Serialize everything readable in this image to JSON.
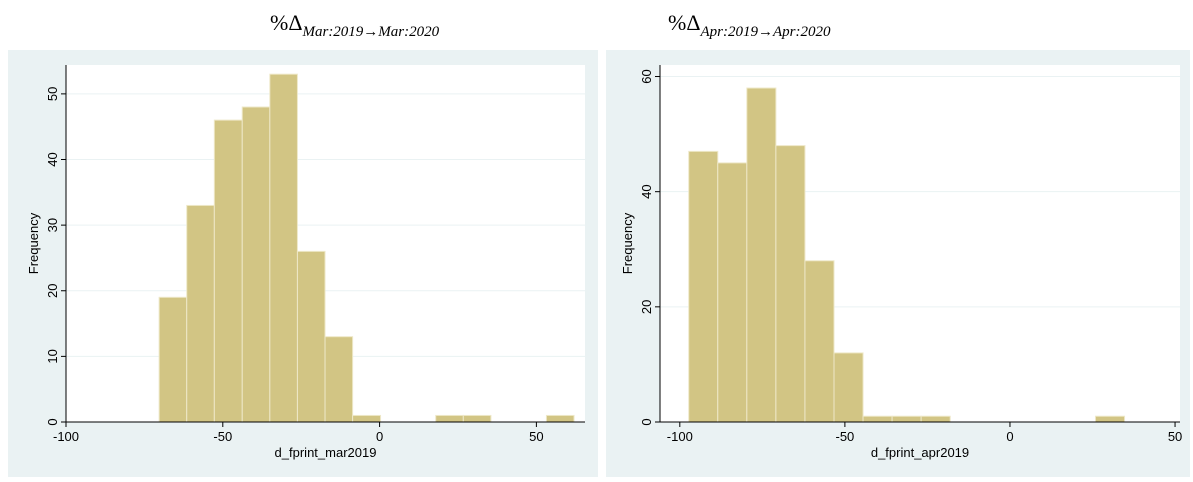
{
  "chart_data": [
    {
      "type": "histogram",
      "title": "%Δ",
      "title_subscript": "Mar:2019→Mar:2020",
      "x_label": "d_fprint_mar2019",
      "y_label": "Frequency",
      "color": "#d2c584",
      "bins": [
        -70.3,
        -61.5,
        -52.7,
        -43.8,
        -35.0,
        -26.2,
        -17.4,
        -8.6,
        0.3,
        9.1,
        17.9,
        26.7,
        35.5,
        44.4,
        53.2,
        62.0
      ],
      "values": [
        19,
        33,
        46,
        48,
        53,
        26,
        13,
        1,
        0,
        0,
        1,
        1,
        0,
        0,
        1
      ],
      "xlim": [
        -100,
        65.5
      ],
      "ylim": [
        0,
        54.4
      ],
      "xticks": [
        -100,
        -50,
        0,
        50
      ],
      "yticks": [
        0,
        10,
        20,
        30,
        40,
        50
      ],
      "grid": true
    },
    {
      "type": "histogram",
      "title": "%Δ",
      "title_subscript": "Apr:2019→Apr:2020",
      "x_label": "d_fprint_apr2019",
      "y_label": "Frequency",
      "color": "#d2c584",
      "bins": [
        -97.3,
        -88.5,
        -79.7,
        -70.9,
        -62.1,
        -53.3,
        -44.5,
        -35.7,
        -26.9,
        -18.1,
        -9.3,
        -0.5,
        8.3,
        17.1,
        25.9,
        34.7
      ],
      "values": [
        47,
        45,
        58,
        48,
        28,
        12,
        1,
        1,
        1,
        0,
        0,
        0,
        0,
        0,
        1
      ],
      "xlim": [
        -106,
        51.5
      ],
      "ylim": [
        0,
        62
      ],
      "xticks": [
        -100,
        -50,
        0,
        50
      ],
      "yticks": [
        0,
        20,
        40,
        60
      ],
      "grid": true
    }
  ]
}
